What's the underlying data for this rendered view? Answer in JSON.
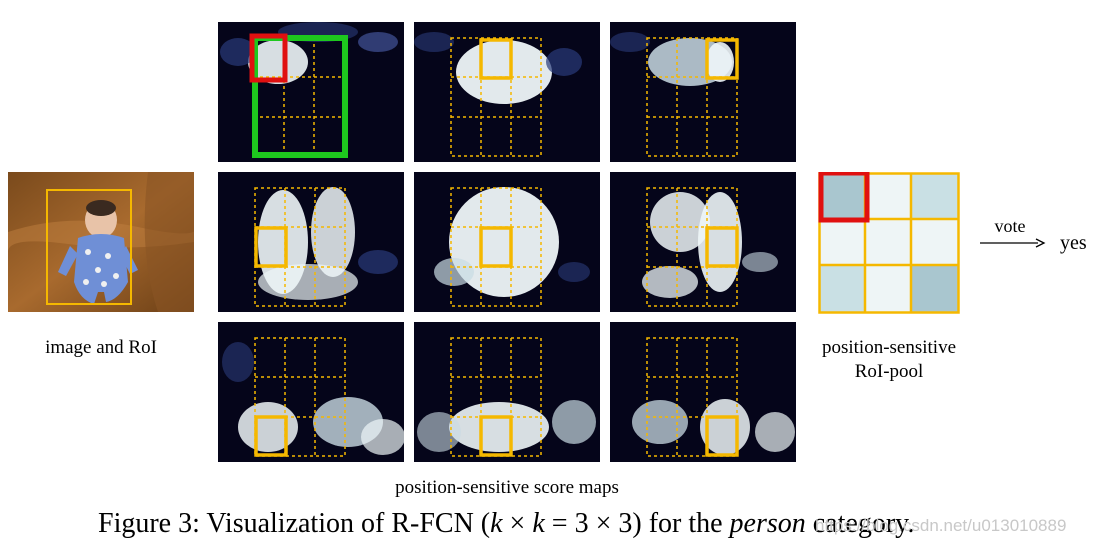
{
  "labels": {
    "image_roi": "image and RoI",
    "pool_line1": "position-sensitive",
    "pool_line2": "RoI-pool",
    "vote": "vote",
    "result": "yes",
    "score_maps": "position-sensitive score maps"
  },
  "caption": {
    "prefix": "Figure 3: Visualization of R-FCN (",
    "math_k1": "k",
    "times1": " × ",
    "math_k2": "k",
    "equals": " = 3 × 3) for the ",
    "category": "person",
    "suffix": " category."
  },
  "watermark": "https://blog.csdn.net/u013010889",
  "colors": {
    "roi_box": "#f5b800",
    "highlight_red": "#e01010",
    "region_green": "#1ec81e",
    "map_background": "#05051a",
    "activation": "#eef6f8",
    "pool_cell_light": "#eef5f6",
    "pool_cell_mid": "#c9e0e4",
    "pool_cell_dark": "#a9c6cf"
  },
  "pool_grid": [
    [
      "dark",
      "light",
      "mid"
    ],
    [
      "light",
      "light",
      "light"
    ],
    [
      "mid",
      "light",
      "dark"
    ]
  ]
}
